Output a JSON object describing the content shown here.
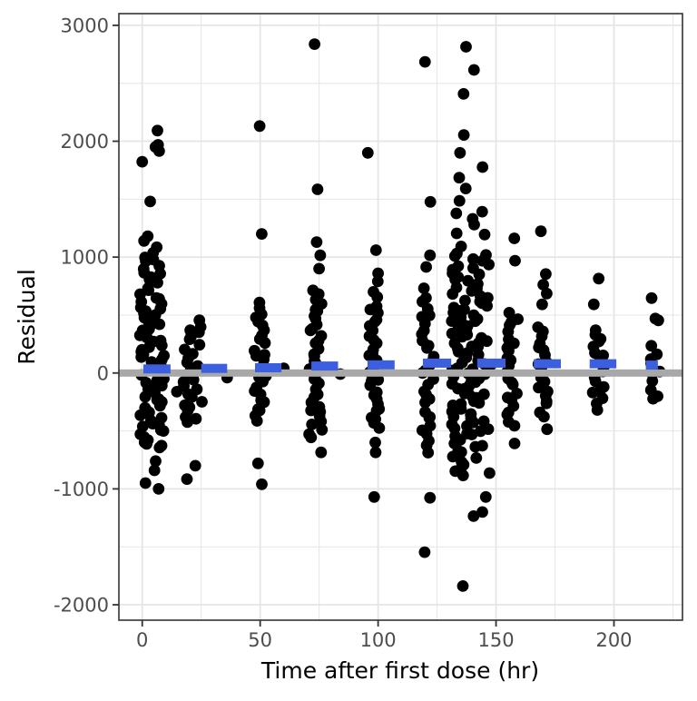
{
  "chart_data": {
    "type": "scatter",
    "title": "",
    "xlabel": "Time after first dose (hr)",
    "ylabel": "Residual",
    "xlim": [
      -9.9,
      229.05
    ],
    "ylim": [
      -2133,
      3101
    ],
    "x_major_ticks": [
      0,
      50,
      100,
      150,
      200
    ],
    "x_minor_gridlines": [
      25,
      75,
      125,
      175,
      225
    ],
    "y_major_ticks": [
      -2000,
      -1000,
      0,
      1000,
      2000,
      3000
    ],
    "y_minor_gridlines": [
      -1500,
      -500,
      500,
      1500,
      2500
    ],
    "grid": true,
    "legend": "none",
    "reference_line": {
      "y": 0,
      "color": "#a8a8a8"
    },
    "colors": {
      "point": "#000000",
      "median_segment": "#3c5fe0",
      "refline": "#a8a8a8",
      "gridline": "#e5e5e5",
      "panel_border": "#333333",
      "tick_text": "#4d4d4d"
    },
    "clusters": [
      {
        "t": 4,
        "spread": 5.2,
        "values": [
          2092,
          1969,
          1950,
          1915,
          1823,
          1480,
          1180,
          1140,
          1085,
          -760,
          -840,
          -950,
          -1000
        ],
        "bands": [
          [
            1050,
            620,
            16
          ],
          [
            620,
            -380,
            52
          ],
          [
            -380,
            -660,
            14
          ]
        ]
      },
      {
        "t": 21.5,
        "spread": 4.2,
        "values": [
          455,
          -800,
          -915
        ],
        "bands": [
          [
            420,
            -350,
            24
          ],
          [
            -350,
            -445,
            3
          ]
        ]
      },
      {
        "t": 50,
        "spread": 2.6,
        "values": [
          2131,
          1200,
          608,
          560,
          -780,
          -960
        ],
        "bands": [
          [
            520,
            -430,
            26
          ]
        ]
      },
      {
        "t": 73.5,
        "spread": 3.0,
        "values": [
          2838,
          1585,
          1130,
          1015,
          900,
          -685
        ],
        "bands": [
          [
            720,
            -330,
            30
          ],
          [
            -330,
            -570,
            7
          ]
        ]
      },
      {
        "t": 97.8,
        "spread": 2.8,
        "values": [
          1900,
          1060,
          860,
          790,
          700,
          655,
          -600,
          -685,
          -1070
        ],
        "bands": [
          [
            600,
            -500,
            30
          ]
        ]
      },
      {
        "t": 121,
        "spread": 2.6,
        "values": [
          2685,
          1477,
          1015,
          915,
          731,
          -1077,
          -1546
        ],
        "bands": [
          [
            660,
            -470,
            26
          ],
          [
            -470,
            -720,
            5
          ]
        ]
      },
      {
        "t": 139.5,
        "spread": 8.3,
        "values": [
          2815,
          2615,
          2408,
          2054,
          1900,
          1777,
          1685,
          1592,
          1485,
          1392,
          1377,
          1330,
          1280,
          1205,
          1195,
          1092,
          -1070,
          -1200,
          -1235,
          -1838
        ],
        "bands": [
          [
            1050,
            620,
            22
          ],
          [
            620,
            -560,
            75
          ],
          [
            -560,
            -900,
            14
          ]
        ]
      },
      {
        "t": 157,
        "spread": 2.4,
        "values": [
          1162,
          969,
          -608
        ],
        "bands": [
          [
            540,
            -480,
            24
          ]
        ]
      },
      {
        "t": 170,
        "spread": 2.4,
        "values": [
          1223,
          854,
          762,
          685,
          592,
          -340,
          -377,
          -485
        ],
        "bands": [
          [
            400,
            -300,
            18
          ]
        ]
      },
      {
        "t": 193.5,
        "spread": 2.6,
        "values": [
          815,
          592
        ],
        "bands": [
          [
            410,
            -330,
            18
          ]
        ]
      },
      {
        "t": 217,
        "spread": 2.4,
        "values": [
          646,
          470,
          454
        ],
        "bands": [
          [
            260,
            -260,
            10
          ]
        ]
      }
    ],
    "single_points": [
      [
        14.7,
        -162
      ],
      [
        36,
        -40
      ],
      [
        60,
        40
      ],
      [
        84,
        -10
      ]
    ],
    "median_segments": [
      {
        "t0": 0.5,
        "t1": 12,
        "v": 35
      },
      {
        "t0": 25,
        "t1": 36,
        "v": 40
      },
      {
        "t0": 47.8,
        "t1": 59,
        "v": 45
      },
      {
        "t0": 71.7,
        "t1": 83,
        "v": 60
      },
      {
        "t0": 95.5,
        "t1": 107,
        "v": 70
      },
      {
        "t0": 119,
        "t1": 131,
        "v": 85
      },
      {
        "t0": 142,
        "t1": 154,
        "v": 85
      },
      {
        "t0": 166,
        "t1": 177.5,
        "v": 80
      },
      {
        "t0": 189.7,
        "t1": 201,
        "v": 80
      },
      {
        "t0": 213.5,
        "t1": 218.6,
        "v": 68
      }
    ]
  }
}
